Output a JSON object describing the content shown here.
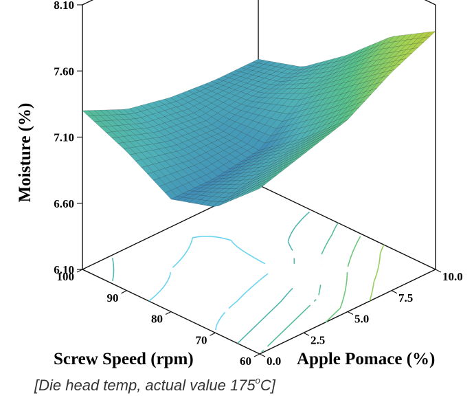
{
  "chart_data": {
    "type": "surface",
    "zlabel": "Moisture (%)",
    "xlabel": "Screw Speed (rpm)",
    "ylabel": "Apple Pomace (%)",
    "z_ticks": [
      "8.10",
      "7.60",
      "7.10",
      "6.60",
      "6.10"
    ],
    "x_ticks": [
      "100",
      "90",
      "80",
      "70",
      "60"
    ],
    "y_ticks": [
      "0.0",
      "2.5",
      "5.0",
      "7.5",
      "10.0"
    ],
    "xlim": [
      60,
      100
    ],
    "ylim": [
      0,
      10
    ],
    "zlim": [
      6.1,
      8.1
    ],
    "surface_grid": {
      "x_screw_speed": [
        60,
        70,
        80,
        90,
        100
      ],
      "y_apple_pomace": [
        0,
        2.5,
        5,
        7.5,
        10
      ],
      "z_moisture": [
        [
          7.35,
          7.05,
          6.95,
          7.15,
          7.3
        ],
        [
          7.45,
          7.15,
          6.95,
          7.05,
          7.15
        ],
        [
          7.55,
          7.25,
          7.0,
          7.02,
          7.08
        ],
        [
          7.75,
          7.5,
          7.25,
          7.1,
          7.05
        ],
        [
          7.9,
          7.7,
          7.4,
          7.15,
          7.05
        ]
      ]
    },
    "colormap": [
      "#3a7fb8",
      "#4fb1b8",
      "#58c28a",
      "#a7d350",
      "#c9b827"
    ],
    "caption": {
      "text": "[Die head temp, actual value 175",
      "superscript": "o",
      "suffix": "C]"
    }
  }
}
